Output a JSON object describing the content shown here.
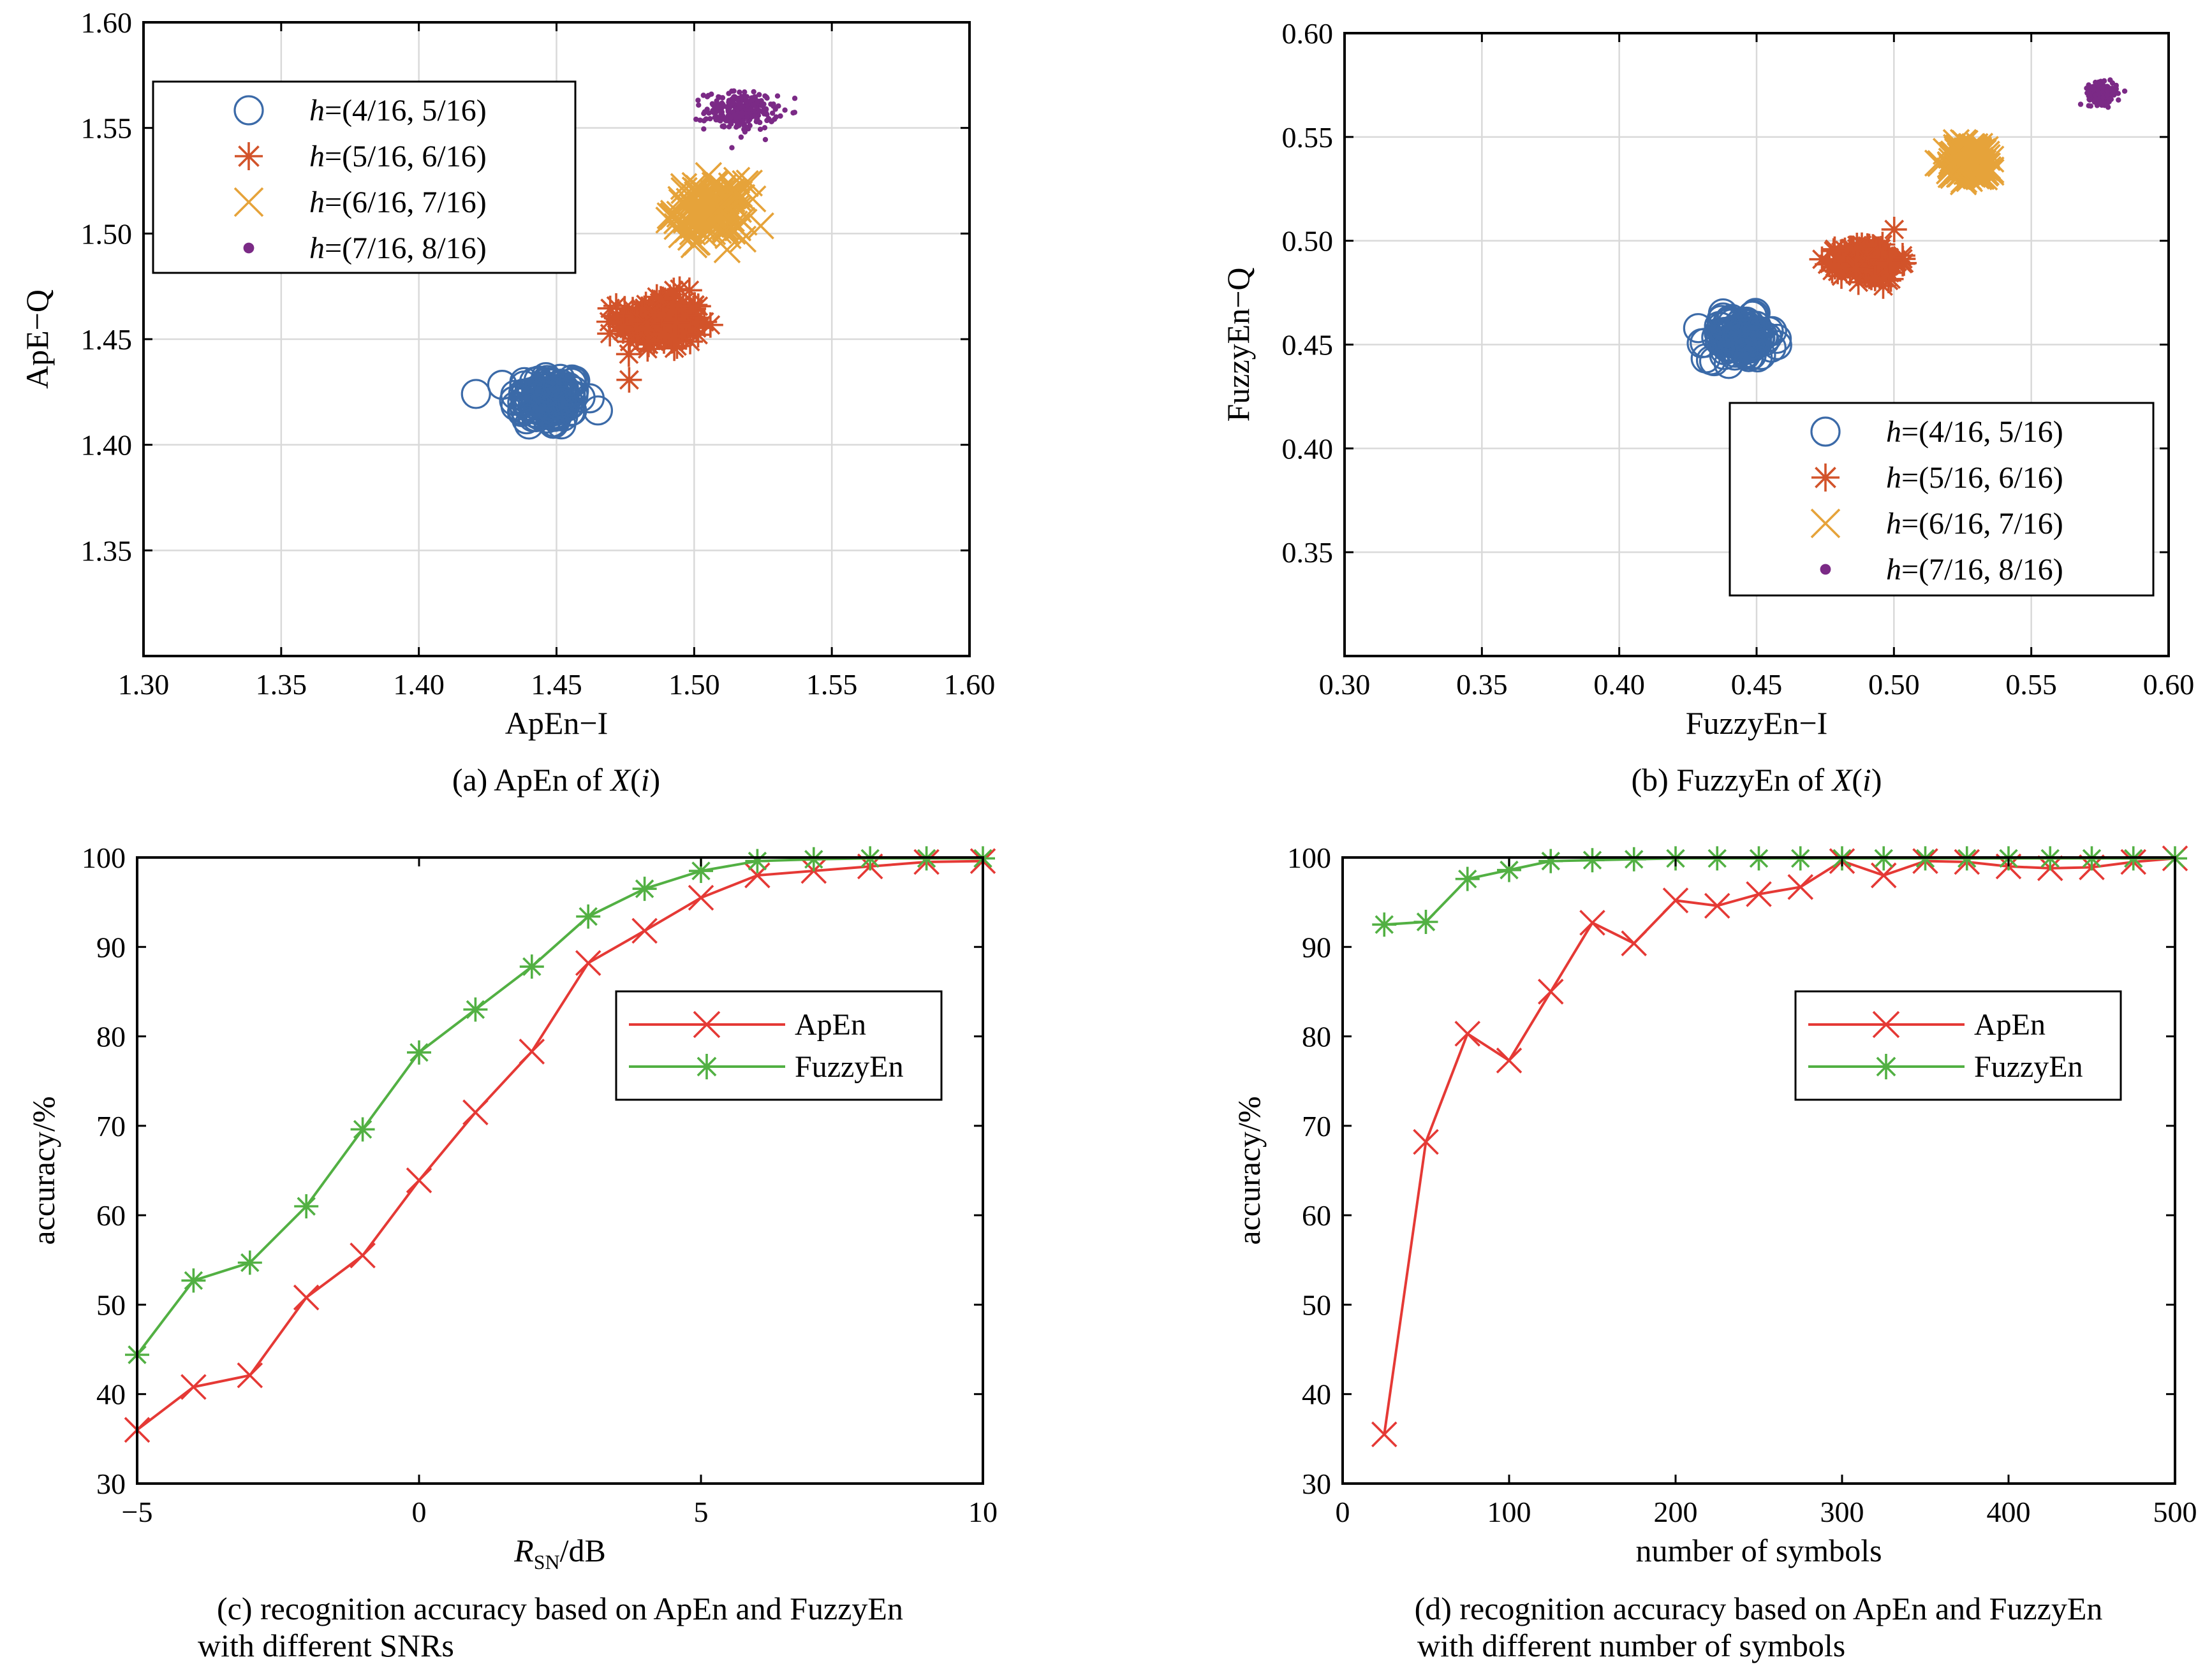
{
  "colors": {
    "blue": "#3b6aa8",
    "orange": "#d2532a",
    "gold": "#e6a33a",
    "purple": "#7b2a86",
    "red": "#e53935",
    "green": "#52b043",
    "grid": "#d9d9d9"
  },
  "chart_data": [
    {
      "id": "a",
      "type": "scatter",
      "caption_prefix": "(a) ApEn of ",
      "caption_var": "X",
      "caption_arg": "i",
      "xlabel": "ApEn−I",
      "ylabel": "ApE−Q",
      "xlim": [
        1.3,
        1.6
      ],
      "ylim": [
        1.3,
        1.6
      ],
      "xticks": [
        "1.30",
        "1.35",
        "1.40",
        "1.45",
        "1.50",
        "1.55",
        "1.60"
      ],
      "yticks": [
        "1.35",
        "1.40",
        "1.45",
        "1.50",
        "1.55",
        "1.60"
      ],
      "grid": true,
      "legend_position": "upper-left",
      "series": [
        {
          "name": "h=(4/16, 5/16)",
          "h_symbol": "h",
          "h_rest": "=(4/16, 5/16)",
          "marker": "circle",
          "color": "blue",
          "center": [
            1.447,
            1.421
          ],
          "spread": [
            0.0065,
            0.0065
          ],
          "count": 130
        },
        {
          "name": "h=(5/16, 6/16)",
          "h_symbol": "h",
          "h_rest": "=(5/16, 6/16)",
          "marker": "asterisk",
          "color": "orange",
          "center": [
            1.488,
            1.458
          ],
          "spread": [
            0.0075,
            0.0065
          ],
          "count": 170
        },
        {
          "name": "h=(6/16, 7/16)",
          "h_symbol": "h",
          "h_rest": "=(6/16, 7/16)",
          "marker": "x",
          "color": "gold",
          "center": [
            1.506,
            1.511
          ],
          "spread": [
            0.0065,
            0.0065
          ],
          "count": 150
        },
        {
          "name": "h=(7/16, 8/16)",
          "h_symbol": "h",
          "h_rest": "=(7/16, 8/16)",
          "marker": "dot",
          "color": "purple",
          "center": [
            1.517,
            1.558
          ],
          "spread": [
            0.0065,
            0.0045
          ],
          "count": 260
        }
      ]
    },
    {
      "id": "b",
      "type": "scatter",
      "caption_prefix": "(b) FuzzyEn of ",
      "caption_var": "X",
      "caption_arg": "i",
      "xlabel": "FuzzyEn−I",
      "ylabel": "FuzzyEn−Q",
      "xlim": [
        0.3,
        0.6
      ],
      "ylim": [
        0.3,
        0.6
      ],
      "xticks": [
        "0.30",
        "0.35",
        "0.40",
        "0.45",
        "0.50",
        "0.55",
        "0.60"
      ],
      "yticks": [
        "0.35",
        "0.40",
        "0.45",
        "0.50",
        "0.55",
        "0.60"
      ],
      "grid": true,
      "legend_position": "lower-right",
      "series": [
        {
          "name": "h=(4/16, 5/16)",
          "h_symbol": "h",
          "h_rest": "=(4/16, 5/16)",
          "marker": "circle",
          "color": "blue",
          "center": [
            0.444,
            0.453
          ],
          "spread": [
            0.006,
            0.005
          ],
          "count": 130
        },
        {
          "name": "h=(5/16, 6/16)",
          "h_symbol": "h",
          "h_rest": "=(5/16, 6/16)",
          "marker": "asterisk",
          "color": "orange",
          "center": [
            0.491,
            0.49
          ],
          "spread": [
            0.0055,
            0.0045
          ],
          "count": 170
        },
        {
          "name": "h=(6/16, 7/16)",
          "h_symbol": "h",
          "h_rest": "=(6/16, 7/16)",
          "marker": "x",
          "color": "gold",
          "center": [
            0.528,
            0.538
          ],
          "spread": [
            0.0045,
            0.0045
          ],
          "count": 150
        },
        {
          "name": "h=(7/16, 8/16)",
          "h_symbol": "h",
          "h_rest": "=(7/16, 8/16)",
          "marker": "dot",
          "color": "purple",
          "center": [
            0.576,
            0.571
          ],
          "spread": [
            0.0025,
            0.0025
          ],
          "count": 200
        }
      ]
    },
    {
      "id": "c",
      "type": "line",
      "caption_lines": [
        "(c) recognition accuracy based on ApEn and FuzzyEn",
        "with different SNRs"
      ],
      "xlabel_main": "R",
      "xlabel_sub": "SN",
      "xlabel_unit": "/dB",
      "ylabel": "accuracy/%",
      "xlim": [
        -5,
        10
      ],
      "ylim": [
        30,
        100
      ],
      "xticks": [
        -5,
        0,
        5,
        10
      ],
      "xtick_labels": [
        "−5",
        "0",
        "5",
        "10"
      ],
      "yticks": [
        30,
        40,
        50,
        60,
        70,
        80,
        90,
        100
      ],
      "grid": false,
      "legend_position": "center-right",
      "x": [
        -5,
        -4,
        -3,
        -2,
        -1,
        0,
        1,
        2,
        3,
        4,
        5,
        6,
        7,
        8,
        9,
        10
      ],
      "series": [
        {
          "name": "ApEn",
          "marker": "x",
          "color": "red",
          "values": [
            36.0,
            40.8,
            42.1,
            50.8,
            55.5,
            63.9,
            71.5,
            78.3,
            88.2,
            91.8,
            95.5,
            98.0,
            98.5,
            99.0,
            99.5,
            99.6
          ]
        },
        {
          "name": "FuzzyEn",
          "marker": "asterisk",
          "color": "green",
          "values": [
            44.4,
            52.7,
            54.7,
            61.0,
            69.6,
            78.2,
            83.0,
            87.8,
            93.4,
            96.5,
            98.5,
            99.6,
            99.8,
            99.9,
            99.9,
            99.9
          ]
        }
      ]
    },
    {
      "id": "d",
      "type": "line",
      "caption_lines": [
        "(d) recognition accuracy based on ApEn and FuzzyEn",
        "with different number of symbols"
      ],
      "xlabel": "number of symbols",
      "ylabel": "accuracy/%",
      "xlim": [
        0,
        500
      ],
      "ylim": [
        30,
        100
      ],
      "xticks": [
        0,
        100,
        200,
        300,
        400,
        500
      ],
      "xtick_labels": [
        "0",
        "100",
        "200",
        "300",
        "400",
        "500"
      ],
      "yticks": [
        30,
        40,
        50,
        60,
        70,
        80,
        90,
        100
      ],
      "grid": false,
      "legend_position": "center-right",
      "x": [
        25,
        50,
        75,
        100,
        125,
        150,
        175,
        200,
        225,
        250,
        275,
        300,
        325,
        350,
        375,
        400,
        425,
        450,
        475,
        500
      ],
      "series": [
        {
          "name": "ApEn",
          "marker": "x",
          "color": "red",
          "values": [
            35.5,
            68.2,
            80.3,
            77.3,
            85.0,
            92.7,
            90.4,
            95.2,
            94.6,
            95.9,
            96.7,
            99.6,
            98.0,
            99.6,
            99.5,
            99.0,
            98.8,
            98.9,
            99.5,
            99.9
          ]
        },
        {
          "name": "FuzzyEn",
          "marker": "asterisk",
          "color": "green",
          "values": [
            92.5,
            92.8,
            97.6,
            98.6,
            99.6,
            99.7,
            99.8,
            99.9,
            99.9,
            99.9,
            99.9,
            99.9,
            99.9,
            99.9,
            99.9,
            99.9,
            99.9,
            99.9,
            99.9,
            99.9
          ]
        }
      ]
    }
  ]
}
